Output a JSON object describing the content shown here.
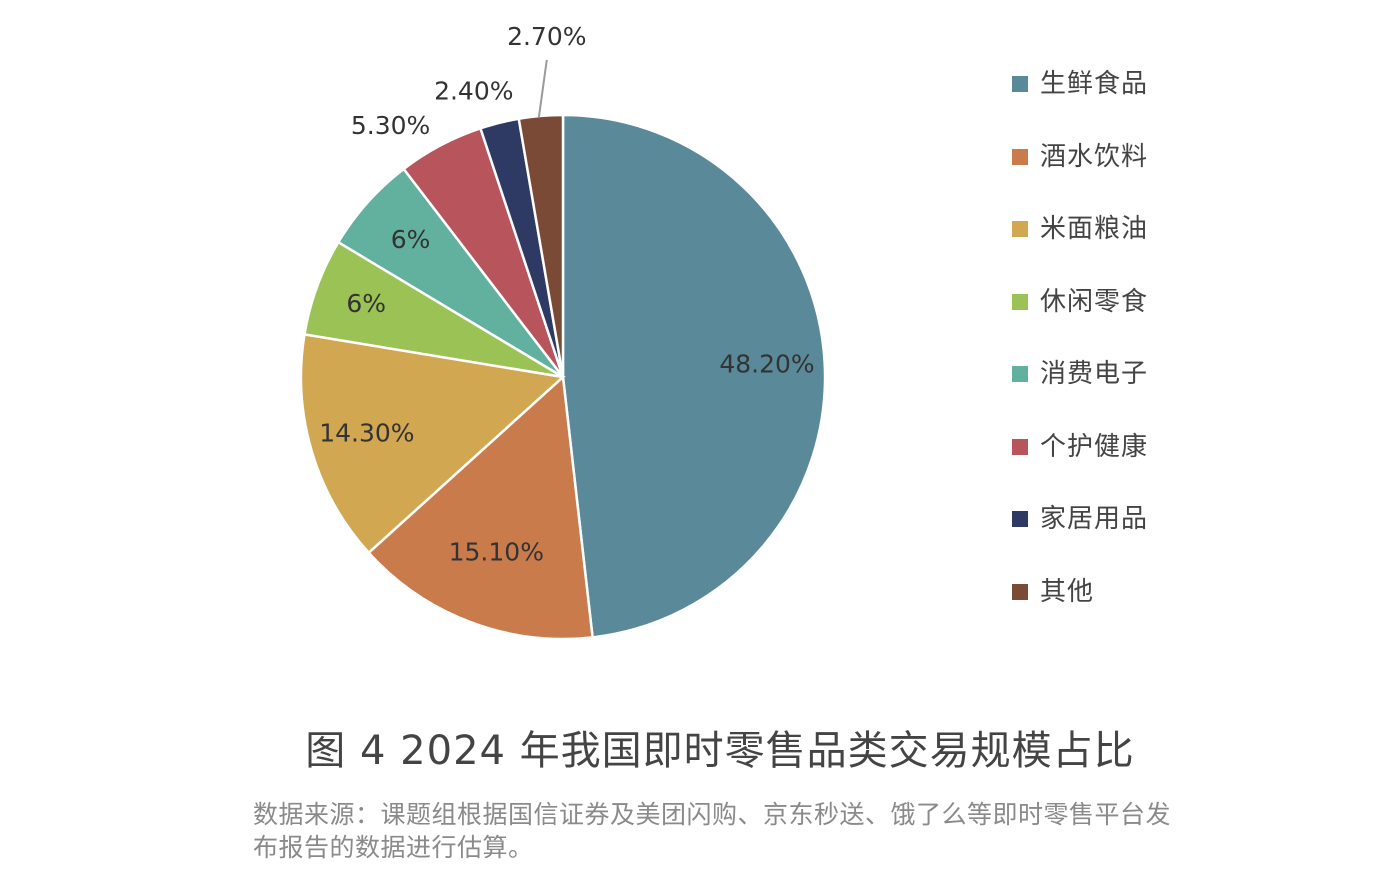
{
  "chart_data": {
    "type": "pie",
    "title": "图 4  2024 年我国即时零售品类交易规模占比",
    "categories": [
      "生鲜食品",
      "酒水饮料",
      "米面粮油",
      "休闲零食",
      "消费电子",
      "个护健康",
      "家居用品",
      "其他"
    ],
    "values": [
      48.2,
      15.1,
      14.3,
      6,
      6,
      5.3,
      2.4,
      2.7
    ],
    "labels": [
      "48.20%",
      "15.10%",
      "14.30%",
      "6%",
      "6%",
      "5.30%",
      "2.40%",
      "2.70%"
    ],
    "colors": [
      "#5a8a9a",
      "#c97b4c",
      "#d1a752",
      "#9bc254",
      "#62b09e",
      "#b8545c",
      "#2f3a64",
      "#7a4a36"
    ],
    "legend_position": "right"
  },
  "source": "数据来源：课题组根据国信证券及美团闪购、京东秒送、饿了么等即时零售平台发布报告的数据进行估算。"
}
